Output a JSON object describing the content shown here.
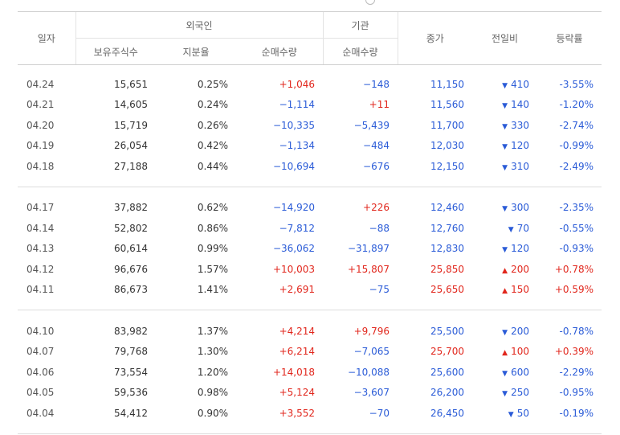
{
  "header": {
    "date": "일자",
    "foreign": "외국인",
    "institution": "기관",
    "holdings": "보유주식수",
    "share_ratio": "지분율",
    "foreign_net": "순매수량",
    "inst_net": "순매수량",
    "close": "종가",
    "change": "전일비",
    "rate": "등락률"
  },
  "colors": {
    "up": "#e1261c",
    "down": "#2a5bd7"
  },
  "groups": [
    [
      {
        "date": "04.24",
        "holdings": "15,651",
        "ratio": "0.25%",
        "foreign_net": "+1,046",
        "inst_net": "−148",
        "close": "11,150",
        "dir": "down",
        "change": "410",
        "rate": "-3.55%"
      },
      {
        "date": "04.21",
        "holdings": "14,605",
        "ratio": "0.24%",
        "foreign_net": "−1,114",
        "inst_net": "+11",
        "close": "11,560",
        "dir": "down",
        "change": "140",
        "rate": "-1.20%"
      },
      {
        "date": "04.20",
        "holdings": "15,719",
        "ratio": "0.26%",
        "foreign_net": "−10,335",
        "inst_net": "−5,439",
        "close": "11,700",
        "dir": "down",
        "change": "330",
        "rate": "-2.74%"
      },
      {
        "date": "04.19",
        "holdings": "26,054",
        "ratio": "0.42%",
        "foreign_net": "−1,134",
        "inst_net": "−484",
        "close": "12,030",
        "dir": "down",
        "change": "120",
        "rate": "-0.99%"
      },
      {
        "date": "04.18",
        "holdings": "27,188",
        "ratio": "0.44%",
        "foreign_net": "−10,694",
        "inst_net": "−676",
        "close": "12,150",
        "dir": "down",
        "change": "310",
        "rate": "-2.49%"
      }
    ],
    [
      {
        "date": "04.17",
        "holdings": "37,882",
        "ratio": "0.62%",
        "foreign_net": "−14,920",
        "inst_net": "+226",
        "close": "12,460",
        "dir": "down",
        "change": "300",
        "rate": "-2.35%"
      },
      {
        "date": "04.14",
        "holdings": "52,802",
        "ratio": "0.86%",
        "foreign_net": "−7,812",
        "inst_net": "−88",
        "close": "12,760",
        "dir": "down",
        "change": "70",
        "rate": "-0.55%"
      },
      {
        "date": "04.13",
        "holdings": "60,614",
        "ratio": "0.99%",
        "foreign_net": "−36,062",
        "inst_net": "−31,897",
        "close": "12,830",
        "dir": "down",
        "change": "120",
        "rate": "-0.93%"
      },
      {
        "date": "04.12",
        "holdings": "96,676",
        "ratio": "1.57%",
        "foreign_net": "+10,003",
        "inst_net": "+15,807",
        "close": "25,850",
        "dir": "up",
        "change": "200",
        "rate": "+0.78%"
      },
      {
        "date": "04.11",
        "holdings": "86,673",
        "ratio": "1.41%",
        "foreign_net": "+2,691",
        "inst_net": "−75",
        "close": "25,650",
        "dir": "up",
        "change": "150",
        "rate": "+0.59%"
      }
    ],
    [
      {
        "date": "04.10",
        "holdings": "83,982",
        "ratio": "1.37%",
        "foreign_net": "+4,214",
        "inst_net": "+9,796",
        "close": "25,500",
        "dir": "down",
        "change": "200",
        "rate": "-0.78%"
      },
      {
        "date": "04.07",
        "holdings": "79,768",
        "ratio": "1.30%",
        "foreign_net": "+6,214",
        "inst_net": "−7,065",
        "close": "25,700",
        "dir": "up",
        "change": "100",
        "rate": "+0.39%"
      },
      {
        "date": "04.06",
        "holdings": "73,554",
        "ratio": "1.20%",
        "foreign_net": "+14,018",
        "inst_net": "−10,088",
        "close": "25,600",
        "dir": "down",
        "change": "600",
        "rate": "-2.29%"
      },
      {
        "date": "04.05",
        "holdings": "59,536",
        "ratio": "0.98%",
        "foreign_net": "+5,124",
        "inst_net": "−3,607",
        "close": "26,200",
        "dir": "down",
        "change": "250",
        "rate": "-0.95%"
      },
      {
        "date": "04.04",
        "holdings": "54,412",
        "ratio": "0.90%",
        "foreign_net": "+3,552",
        "inst_net": "−70",
        "close": "26,450",
        "dir": "down",
        "change": "50",
        "rate": "-0.19%"
      }
    ]
  ]
}
